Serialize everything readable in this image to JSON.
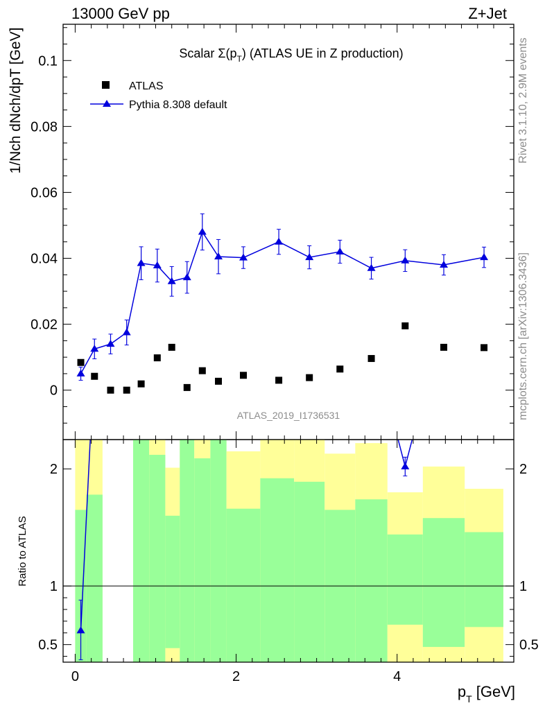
{
  "header": {
    "left": "13000 GeV pp",
    "right": "Z+Jet"
  },
  "side_text": {
    "rivet": "Rivet 3.1.10,  2.9M events",
    "mcplots": "mcplots.cern.ch [arXiv:1306.3436]"
  },
  "chart_data": [
    {
      "type": "scatter",
      "title": "Scalar Σ(pT) (ATLAS UE in Z production)",
      "title_parts": {
        "main": "Scalar Σ(p",
        "sub": "T",
        "tail": ") (ATLAS UE in Z production)"
      },
      "analysis_label": "ATLAS_2019_I1736531",
      "ylabel": "1/Nch dNch/dpT [GeV]",
      "xlim": [
        -0.15,
        5.45
      ],
      "ylim": [
        -0.015,
        0.111
      ],
      "yticks": [
        0,
        0.02,
        0.04,
        0.06,
        0.08,
        0.1
      ],
      "ytick_labels": [
        "0",
        "0.02",
        "0.04",
        "0.06",
        "0.08",
        "0.1"
      ],
      "legend_position": "top-left",
      "series": [
        {
          "name": "ATLAS",
          "style": "square-marker",
          "color": "#000000",
          "x": [
            0.07,
            0.24,
            0.44,
            0.64,
            0.82,
            1.02,
            1.2,
            1.39,
            1.58,
            1.78,
            2.09,
            2.53,
            2.91,
            3.29,
            3.68,
            4.1,
            4.58,
            5.08
          ],
          "y": [
            0.0084,
            0.0042,
            0.0,
            0.0,
            0.0019,
            0.0098,
            0.013,
            0.0008,
            0.0059,
            0.0027,
            0.0045,
            0.003,
            0.0038,
            0.0064,
            0.0096,
            0.0195,
            0.013,
            0.0129
          ]
        },
        {
          "name": "Pythia 8.308 default",
          "style": "line-triangle",
          "color": "#0000dd",
          "x": [
            0.07,
            0.24,
            0.44,
            0.64,
            0.82,
            1.02,
            1.2,
            1.39,
            1.58,
            1.78,
            2.09,
            2.53,
            2.91,
            3.29,
            3.68,
            4.1,
            4.58,
            5.08
          ],
          "y": [
            0.005,
            0.0125,
            0.014,
            0.0175,
            0.0385,
            0.0378,
            0.033,
            0.0342,
            0.048,
            0.0405,
            0.0402,
            0.045,
            0.0403,
            0.042,
            0.037,
            0.0393,
            0.038,
            0.0403
          ],
          "yerr": [
            0.002,
            0.003,
            0.003,
            0.0038,
            0.005,
            0.005,
            0.0045,
            0.0048,
            0.0055,
            0.0052,
            0.0033,
            0.0038,
            0.0035,
            0.0035,
            0.0033,
            0.0033,
            0.0031,
            0.0031
          ]
        }
      ]
    },
    {
      "type": "area",
      "ylabel": "Ratio to ATLAS",
      "xlabel": "pT [GeV]",
      "xlim": [
        -0.15,
        5.45
      ],
      "ylim": [
        0.35,
        2.25
      ],
      "xticks": [
        0,
        2,
        4
      ],
      "xtick_labels": [
        "0",
        "2",
        "4"
      ],
      "yticks": [
        0.5,
        1,
        2
      ],
      "ytick_labels": [
        "0.5",
        "1",
        "2"
      ],
      "reference_line": 1,
      "bins": [
        {
          "lo": 0.0,
          "hi": 0.14,
          "yellow": [
            0.38,
            2.25
          ],
          "green": [
            0.35,
            1.65
          ]
        },
        {
          "lo": 0.14,
          "hi": 0.34,
          "yellow": [
            0.35,
            2.25
          ],
          "green": [
            0.35,
            1.78
          ]
        },
        {
          "lo": 0.72,
          "hi": 0.92,
          "yellow": [
            0.35,
            2.25
          ],
          "green": [
            0.35,
            2.25
          ]
        },
        {
          "lo": 0.92,
          "hi": 1.12,
          "yellow": [
            0.35,
            2.25
          ],
          "green": [
            0.35,
            2.12
          ]
        },
        {
          "lo": 1.12,
          "hi": 1.3,
          "yellow": [
            0.35,
            2.01
          ],
          "green": [
            0.47,
            1.6
          ]
        },
        {
          "lo": 1.3,
          "hi": 1.48,
          "yellow": [
            0.35,
            2.25
          ],
          "green": [
            0.35,
            2.25
          ]
        },
        {
          "lo": 1.48,
          "hi": 1.68,
          "yellow": [
            0.35,
            2.25
          ],
          "green": [
            0.35,
            2.09
          ]
        },
        {
          "lo": 1.68,
          "hi": 1.88,
          "yellow": [
            0.35,
            2.25
          ],
          "green": [
            0.35,
            2.25
          ]
        },
        {
          "lo": 1.88,
          "hi": 2.3,
          "yellow": [
            0.38,
            2.15
          ],
          "green": [
            0.35,
            1.66
          ]
        },
        {
          "lo": 2.3,
          "hi": 2.72,
          "yellow": [
            0.35,
            2.25
          ],
          "green": [
            0.35,
            1.92
          ]
        },
        {
          "lo": 2.72,
          "hi": 3.1,
          "yellow": [
            0.35,
            2.25
          ],
          "green": [
            0.35,
            1.89
          ]
        },
        {
          "lo": 3.1,
          "hi": 3.48,
          "yellow": [
            0.43,
            2.13
          ],
          "green": [
            0.35,
            1.65
          ]
        },
        {
          "lo": 3.48,
          "hi": 3.88,
          "yellow": [
            0.35,
            2.22
          ],
          "green": [
            0.35,
            1.74
          ]
        },
        {
          "lo": 3.88,
          "hi": 4.32,
          "yellow": [
            0.35,
            1.8
          ],
          "green": [
            0.67,
            1.44
          ]
        },
        {
          "lo": 4.32,
          "hi": 4.84,
          "yellow": [
            0.35,
            2.02
          ],
          "green": [
            0.48,
            1.58
          ]
        },
        {
          "lo": 4.84,
          "hi": 5.32,
          "yellow": [
            0.35,
            1.83
          ],
          "green": [
            0.65,
            1.46
          ]
        }
      ],
      "ratio_line": {
        "name": "Pythia 8.308 default",
        "color": "#0000dd",
        "points": [
          {
            "x": 0.07,
            "y": 0.62,
            "yerr": [
              0.25,
              0.26
            ]
          },
          {
            "x": 0.24,
            "y": 2.98
          },
          {
            "x": 3.88,
            "y": 2.6
          },
          {
            "x": 4.1,
            "y": 2.02,
            "yerr": [
              0.08,
              0.08
            ]
          },
          {
            "x": 4.32,
            "y": 2.6
          }
        ]
      }
    }
  ]
}
